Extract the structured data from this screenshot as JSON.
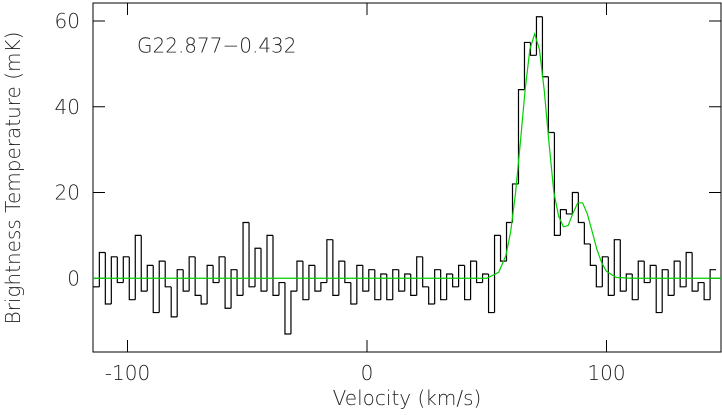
{
  "chart_data": {
    "type": "step",
    "annotation": "G22.877−0.432",
    "xlabel": "Velocity (km/s)",
    "ylabel": "Brightness Temperature (mK)",
    "xlim": [
      -114.4,
      147.8
    ],
    "ylim": [
      -17.2,
      64.2
    ],
    "xticks": [
      -100,
      0,
      100
    ],
    "yticks": [
      0,
      20,
      40,
      60
    ],
    "spectrum": {
      "color": "#000000",
      "x": [
        -113,
        -110.5,
        -108,
        -105.5,
        -103,
        -100.5,
        -98,
        -95.5,
        -93,
        -90.5,
        -88,
        -85.5,
        -83,
        -80.5,
        -78,
        -75.5,
        -73,
        -70.5,
        -68,
        -65.5,
        -63,
        -60.5,
        -58,
        -55.5,
        -53,
        -50.5,
        -48,
        -45.5,
        -43,
        -40.5,
        -38,
        -35.5,
        -33,
        -30.5,
        -28,
        -25.5,
        -23,
        -20.5,
        -18,
        -15.5,
        -13,
        -10.5,
        -8,
        -5.5,
        -3,
        -0.5,
        2,
        4.5,
        7,
        9.5,
        12,
        14.5,
        17,
        19.5,
        22,
        24.5,
        27,
        29.5,
        32,
        34.5,
        37,
        39.5,
        42,
        44.5,
        47,
        49.5,
        52,
        54.5,
        57,
        59.5,
        62,
        64.5,
        67,
        69.5,
        72,
        74.5,
        77,
        79.5,
        82,
        84.5,
        87,
        89.5,
        92,
        94.5,
        97,
        99.5,
        102,
        104.5,
        107,
        109.5,
        112,
        114.5,
        117,
        119.5,
        122,
        124.5,
        127,
        129.5,
        132,
        134.5,
        137,
        139.5,
        142,
        144.5
      ],
      "values": [
        -2,
        6,
        -6,
        5,
        -1,
        5,
        -5,
        10,
        -3,
        3,
        -8,
        4,
        -2,
        -9,
        2,
        -3,
        5,
        -4,
        -6,
        3,
        -1,
        5,
        -7,
        2,
        -4,
        13,
        -2,
        7,
        -3,
        10,
        -4,
        -1,
        -13,
        -3,
        4,
        -5,
        3,
        -3,
        -1,
        9,
        -4,
        4,
        -1,
        -6,
        3,
        -3,
        2,
        -5,
        1,
        -5,
        2,
        -3,
        1,
        -4,
        5,
        -2,
        -6,
        2,
        -5,
        1,
        -2,
        3,
        -5,
        4,
        -1,
        1,
        -8,
        10,
        4,
        13,
        22,
        44,
        55,
        52,
        61,
        47,
        34,
        10,
        16,
        15,
        20,
        13,
        8,
        3,
        -2,
        5,
        -4,
        9,
        -3,
        1,
        -5,
        4,
        -1,
        3,
        -8,
        2,
        -4,
        4,
        -2,
        6,
        -3,
        -1,
        -5,
        2
      ]
    },
    "fit": {
      "color": "#00d000",
      "x": [
        -114.4,
        50,
        55,
        58,
        60,
        62,
        64,
        66,
        68,
        70,
        72,
        74,
        76,
        78,
        80,
        82,
        84,
        86,
        88,
        90,
        92,
        94,
        96,
        98,
        100,
        104,
        110,
        147.8
      ],
      "values": [
        0,
        0,
        1.4,
        5.3,
        10.9,
        19.8,
        31.5,
        43.8,
        53.4,
        57,
        53.4,
        43.8,
        31.5,
        20.1,
        14.5,
        12,
        12.3,
        15.2,
        17.6,
        17.6,
        15,
        10.9,
        6.7,
        3.6,
        1.6,
        0.2,
        0,
        0
      ]
    }
  }
}
